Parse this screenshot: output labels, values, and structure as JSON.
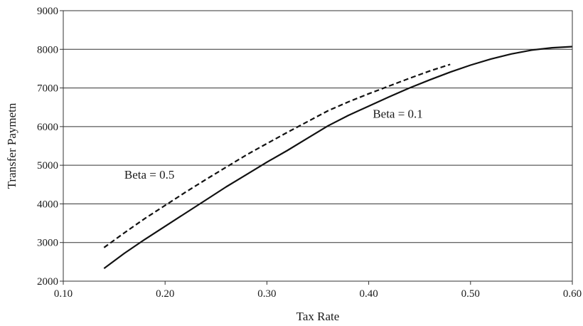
{
  "chart_data": {
    "type": "line",
    "title": "",
    "xlabel": "Tax Rate",
    "ylabel": "Transfer Paymetn",
    "xlim": [
      0.1,
      0.6
    ],
    "ylim": [
      2000,
      9000
    ],
    "x_ticks": [
      "0.10",
      "0.20",
      "0.30",
      "0.40",
      "0.50",
      "0.60"
    ],
    "y_ticks": [
      "2000",
      "3000",
      "4000",
      "5000",
      "6000",
      "7000",
      "8000",
      "9000"
    ],
    "grid": "horizontal",
    "series": [
      {
        "name": "Beta = 0.1",
        "style": "solid",
        "color": "#111111",
        "x": [
          0.14,
          0.16,
          0.18,
          0.2,
          0.22,
          0.24,
          0.26,
          0.28,
          0.3,
          0.32,
          0.34,
          0.36,
          0.38,
          0.4,
          0.42,
          0.44,
          0.46,
          0.48,
          0.5,
          0.52,
          0.54,
          0.56,
          0.58,
          0.6
        ],
        "y": [
          2330,
          2720,
          3080,
          3420,
          3760,
          4100,
          4440,
          4760,
          5080,
          5380,
          5700,
          6020,
          6290,
          6530,
          6770,
          7000,
          7210,
          7410,
          7590,
          7750,
          7880,
          7980,
          8040,
          8070
        ]
      },
      {
        "name": "Beta = 0.5",
        "style": "dashed",
        "color": "#111111",
        "x": [
          0.14,
          0.16,
          0.18,
          0.2,
          0.22,
          0.24,
          0.26,
          0.28,
          0.3,
          0.32,
          0.34,
          0.36,
          0.38,
          0.4,
          0.42,
          0.44,
          0.46,
          0.48
        ],
        "y": [
          2870,
          3250,
          3620,
          3960,
          4300,
          4630,
          4950,
          5270,
          5560,
          5850,
          6130,
          6410,
          6640,
          6850,
          7050,
          7250,
          7440,
          7610
        ]
      }
    ],
    "annotations": [
      {
        "text": "Beta = 0.5",
        "x": 0.16,
        "y": 4650
      },
      {
        "text": "Beta = 0.1",
        "x": 0.404,
        "y": 6230
      }
    ]
  }
}
